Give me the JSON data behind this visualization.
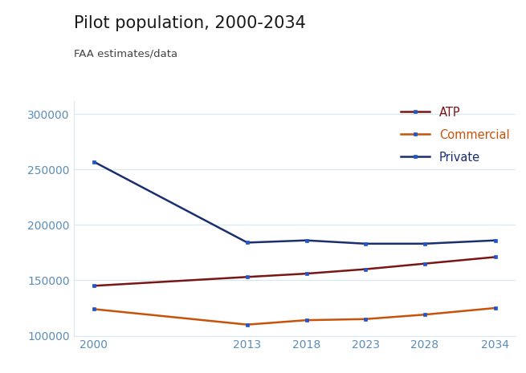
{
  "title": "Pilot population, 2000-2034",
  "subtitle": "FAA estimates/data",
  "x_years": [
    2000,
    2013,
    2018,
    2023,
    2028,
    2034
  ],
  "atp": [
    145000,
    153000,
    156000,
    160000,
    165000,
    171000
  ],
  "commercial": [
    124000,
    110000,
    114000,
    115000,
    119000,
    125000
  ],
  "private": [
    257000,
    184000,
    186000,
    183000,
    183000,
    186000
  ],
  "atp_color": "#7a1515",
  "commercial_color": "#c8520a",
  "private_color": "#1a2f6e",
  "legend_atp": "ATP",
  "legend_commercial": "Commercial",
  "legend_private": "Private",
  "ylim": [
    100000,
    312000
  ],
  "yticks": [
    100000,
    150000,
    200000,
    250000,
    300000
  ],
  "background_color": "#ffffff",
  "title_fontsize": 15,
  "subtitle_fontsize": 9.5,
  "tick_color": "#5b8db8",
  "grid_color": "#d8e8f3",
  "marker_color": "#2255cc",
  "linewidth": 1.8,
  "markersize": 3.5
}
